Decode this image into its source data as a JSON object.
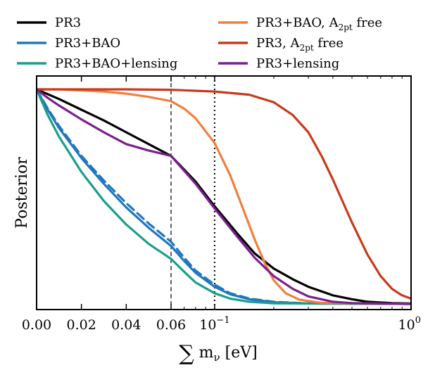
{
  "chart_data": {
    "type": "line",
    "title": "",
    "xlabel": "∑ m_ν [eV]",
    "ylabel": "Posterior",
    "xscale": "piecewise linear 0–0.06, then log to 1",
    "xlim": [
      0.0,
      1.0
    ],
    "ylim": [
      0.0,
      1.0
    ],
    "x_ticks": [
      {
        "value": 0.0,
        "label": "0.00",
        "sup": ""
      },
      {
        "value": 0.02,
        "label": "0.02",
        "sup": ""
      },
      {
        "value": 0.04,
        "label": "0.04",
        "sup": ""
      },
      {
        "value": 0.06,
        "label": "0.06",
        "sup": ""
      },
      {
        "value": 0.1,
        "label": "10",
        "sup": "−1"
      },
      {
        "value": 1.0,
        "label": "10",
        "sup": "0"
      }
    ],
    "vlines": [
      {
        "x": 0.06,
        "style": "dashed"
      },
      {
        "x": 0.1,
        "style": "dotted"
      }
    ],
    "legend": {
      "placement": "top",
      "entries": [
        {
          "label": "PR3",
          "color": "#000000"
        },
        {
          "label": "PR3+BAO",
          "color": "#1f77c0"
        },
        {
          "label": "PR3+BAO+lensing",
          "color": "#1a9e8c"
        },
        {
          "label": "PR3+BAO, A",
          "sub": "2pt",
          "suffix": " free",
          "color": "#f07f3c"
        },
        {
          "label": "PR3, A",
          "sub": "2pt",
          "suffix": " free",
          "color": "#c8391a"
        },
        {
          "label": "PR3+lensing",
          "color": "#7b1f8e"
        }
      ]
    },
    "series": [
      {
        "name": "PR3",
        "color": "#000000",
        "dash": "",
        "points": [
          [
            0.0,
            1.0
          ],
          [
            0.01,
            0.955
          ],
          [
            0.02,
            0.905
          ],
          [
            0.03,
            0.855
          ],
          [
            0.04,
            0.8
          ],
          [
            0.05,
            0.745
          ],
          [
            0.06,
            0.69
          ],
          [
            0.08,
            0.57
          ],
          [
            0.1,
            0.455
          ],
          [
            0.13,
            0.33
          ],
          [
            0.16,
            0.235
          ],
          [
            0.2,
            0.165
          ],
          [
            0.25,
            0.115
          ],
          [
            0.3,
            0.08
          ],
          [
            0.4,
            0.04
          ],
          [
            0.5,
            0.022
          ],
          [
            0.6,
            0.01
          ],
          [
            0.8,
            0.004
          ],
          [
            1.0,
            0.002
          ]
        ]
      },
      {
        "name": "PR3+BAO",
        "color": "#1f77c0",
        "dash": "",
        "points": [
          [
            0.0,
            1.0
          ],
          [
            0.005,
            0.905
          ],
          [
            0.01,
            0.82
          ],
          [
            0.02,
            0.68
          ],
          [
            0.03,
            0.56
          ],
          [
            0.04,
            0.45
          ],
          [
            0.05,
            0.355
          ],
          [
            0.06,
            0.27
          ],
          [
            0.07,
            0.2
          ],
          [
            0.08,
            0.145
          ],
          [
            0.1,
            0.08
          ],
          [
            0.12,
            0.045
          ],
          [
            0.15,
            0.022
          ],
          [
            0.2,
            0.008
          ],
          [
            0.3,
            0.002
          ],
          [
            1.0,
            0.0
          ]
        ]
      },
      {
        "name": "PR3+BAO (dashed)",
        "color": "#1f77c0",
        "dash": "12,7",
        "points": [
          [
            0.0,
            1.0
          ],
          [
            0.005,
            0.91
          ],
          [
            0.01,
            0.83
          ],
          [
            0.02,
            0.69
          ],
          [
            0.03,
            0.575
          ],
          [
            0.04,
            0.47
          ],
          [
            0.05,
            0.375
          ],
          [
            0.06,
            0.29
          ],
          [
            0.07,
            0.215
          ],
          [
            0.08,
            0.155
          ],
          [
            0.1,
            0.09
          ],
          [
            0.12,
            0.05
          ],
          [
            0.15,
            0.025
          ],
          [
            0.2,
            0.01
          ],
          [
            0.3,
            0.002
          ],
          [
            1.0,
            0.0
          ]
        ]
      },
      {
        "name": "PR3+BAO+lensing",
        "color": "#1a9e8c",
        "dash": "",
        "points": [
          [
            0.0,
            1.0
          ],
          [
            0.005,
            0.88
          ],
          [
            0.01,
            0.78
          ],
          [
            0.02,
            0.615
          ],
          [
            0.03,
            0.48
          ],
          [
            0.04,
            0.37
          ],
          [
            0.05,
            0.28
          ],
          [
            0.06,
            0.21
          ],
          [
            0.07,
            0.15
          ],
          [
            0.08,
            0.1
          ],
          [
            0.1,
            0.05
          ],
          [
            0.12,
            0.025
          ],
          [
            0.15,
            0.01
          ],
          [
            0.2,
            0.003
          ],
          [
            1.0,
            0.0
          ]
        ]
      },
      {
        "name": "PR3+BAO, A2pt free",
        "color": "#f07f3c",
        "dash": "",
        "points": [
          [
            0.0,
            1.0
          ],
          [
            0.01,
            1.0
          ],
          [
            0.02,
            0.995
          ],
          [
            0.03,
            0.99
          ],
          [
            0.04,
            0.98
          ],
          [
            0.05,
            0.965
          ],
          [
            0.06,
            0.945
          ],
          [
            0.07,
            0.91
          ],
          [
            0.08,
            0.865
          ],
          [
            0.1,
            0.75
          ],
          [
            0.12,
            0.6
          ],
          [
            0.14,
            0.44
          ],
          [
            0.16,
            0.3
          ],
          [
            0.18,
            0.19
          ],
          [
            0.2,
            0.11
          ],
          [
            0.23,
            0.05
          ],
          [
            0.27,
            0.02
          ],
          [
            0.35,
            0.005
          ],
          [
            1.0,
            0.0
          ]
        ]
      },
      {
        "name": "PR3, A2pt free",
        "color": "#c8391a",
        "dash": "",
        "points": [
          [
            0.0,
            1.0
          ],
          [
            0.02,
            1.0
          ],
          [
            0.04,
            1.0
          ],
          [
            0.06,
            0.998
          ],
          [
            0.1,
            0.99
          ],
          [
            0.15,
            0.975
          ],
          [
            0.2,
            0.94
          ],
          [
            0.25,
            0.88
          ],
          [
            0.3,
            0.8
          ],
          [
            0.35,
            0.69
          ],
          [
            0.4,
            0.58
          ],
          [
            0.5,
            0.38
          ],
          [
            0.6,
            0.23
          ],
          [
            0.7,
            0.13
          ],
          [
            0.8,
            0.07
          ],
          [
            0.9,
            0.04
          ],
          [
            1.0,
            0.025
          ]
        ]
      },
      {
        "name": "PR3+lensing",
        "color": "#7b1f8e",
        "dash": "",
        "points": [
          [
            0.0,
            1.0
          ],
          [
            0.005,
            0.96
          ],
          [
            0.01,
            0.925
          ],
          [
            0.02,
            0.86
          ],
          [
            0.03,
            0.8
          ],
          [
            0.04,
            0.745
          ],
          [
            0.05,
            0.715
          ],
          [
            0.06,
            0.69
          ],
          [
            0.08,
            0.56
          ],
          [
            0.1,
            0.445
          ],
          [
            0.13,
            0.315
          ],
          [
            0.16,
            0.215
          ],
          [
            0.2,
            0.13
          ],
          [
            0.25,
            0.07
          ],
          [
            0.3,
            0.035
          ],
          [
            0.4,
            0.01
          ],
          [
            0.5,
            0.004
          ],
          [
            1.0,
            0.0
          ]
        ]
      }
    ]
  }
}
